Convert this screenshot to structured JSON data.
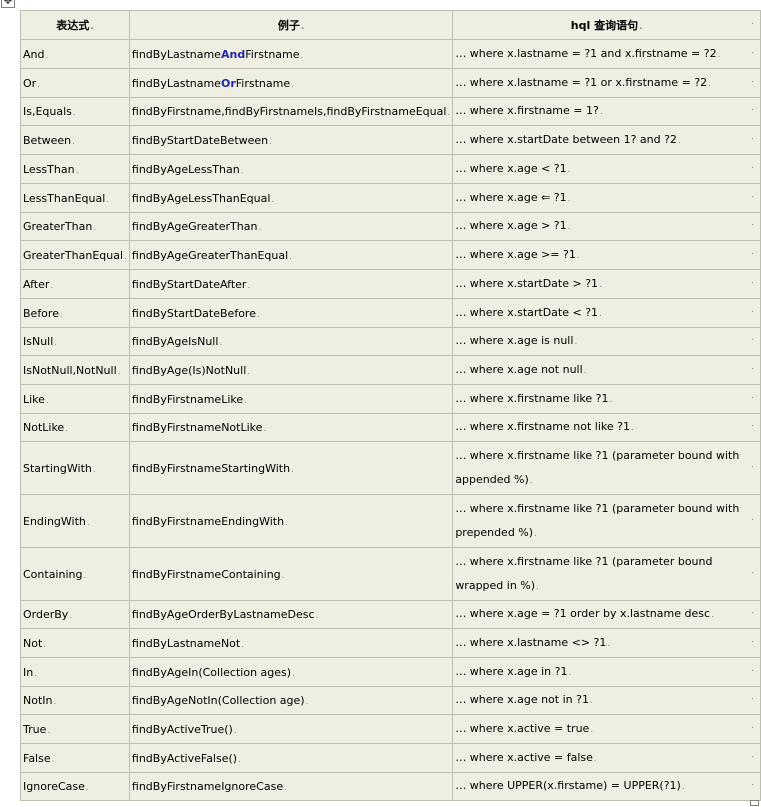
{
  "header": {
    "col1": "表达式",
    "col2": "例子",
    "col3": "hql 查询语句"
  },
  "rows": [
    {
      "keyword": "And",
      "example_pre": "findByLastname",
      "example_kw": "And",
      "example_post": "Firstname",
      "hql": "… where x.lastname = ?1 and x.firstname = ?2"
    },
    {
      "keyword": "Or",
      "example_pre": "findByLastname",
      "example_kw": "Or",
      "example_post": "Firstname",
      "hql": "… where x.lastname = ?1 or x.firstname = ?2"
    },
    {
      "keyword": "Is,Equals",
      "example": "findByFirstname,findByFirstnameIs,findByFirstnameEqual",
      "hql": "… where x.firstname = 1?"
    },
    {
      "keyword": "Between",
      "example": "findByStartDateBetween",
      "hql": "… where x.startDate between 1? and ?2"
    },
    {
      "keyword": "LessThan",
      "example": "findByAgeLessThan",
      "hql": "… where x.age < ?1"
    },
    {
      "keyword": "LessThanEqual",
      "example": "findByAgeLessThanEqual",
      "hql": "… where x.age ⇐ ?1"
    },
    {
      "keyword": "GreaterThan",
      "example": "findByAgeGreaterThan",
      "hql": "… where x.age > ?1"
    },
    {
      "keyword": "GreaterThanEqual",
      "example": "findByAgeGreaterThanEqual",
      "hql": "… where x.age >= ?1"
    },
    {
      "keyword": "After",
      "example": "findByStartDateAfter",
      "hql": "… where x.startDate > ?1"
    },
    {
      "keyword": "Before",
      "example": "findByStartDateBefore",
      "hql": "… where x.startDate < ?1"
    },
    {
      "keyword": "IsNull",
      "example": "findByAgeIsNull",
      "hql": "… where x.age is null"
    },
    {
      "keyword": "IsNotNull,NotNull",
      "example": "findByAge(Is)NotNull",
      "hql": "… where x.age not null"
    },
    {
      "keyword": "Like",
      "example": "findByFirstnameLike",
      "hql": "… where x.firstname like ?1"
    },
    {
      "keyword": "NotLike",
      "example": "findByFirstnameNotLike",
      "hql": "… where x.firstname not like ?1"
    },
    {
      "keyword": "StartingWith",
      "example": "findByFirstnameStartingWith",
      "hql": "… where x.firstname like ?1 (parameter bound with appended %)"
    },
    {
      "keyword": "EndingWith",
      "example": "findByFirstnameEndingWith",
      "hql": "… where x.firstname like ?1 (parameter bound with prepended %)"
    },
    {
      "keyword": "Containing",
      "example": "findByFirstnameContaining",
      "hql": "… where x.firstname like ?1 (parameter bound wrapped in %)"
    },
    {
      "keyword": "OrderBy",
      "example": "findByAgeOrderByLastnameDesc",
      "hql": "… where x.age = ?1 order by x.lastname desc"
    },
    {
      "keyword": "Not",
      "example": "findByLastnameNot",
      "hql": "… where x.lastname <> ?1"
    },
    {
      "keyword": "In",
      "example": "findByAgeIn(Collection ages)",
      "hql": "… where x.age in ?1"
    },
    {
      "keyword": "NotIn",
      "example": "findByAgeNotIn(Collection age)",
      "hql": "… where x.age not in ?1"
    },
    {
      "keyword": "True",
      "example": "findByActiveTrue()",
      "hql": "… where x.active = true"
    },
    {
      "keyword": "False",
      "example": "findByActiveFalse()",
      "hql": "… where x.active = false"
    },
    {
      "keyword": "IgnoreCase",
      "example": "findByFirstnameIgnoreCase",
      "hql": "… where UPPER(x.firstame) = UPPER(?1)"
    }
  ]
}
